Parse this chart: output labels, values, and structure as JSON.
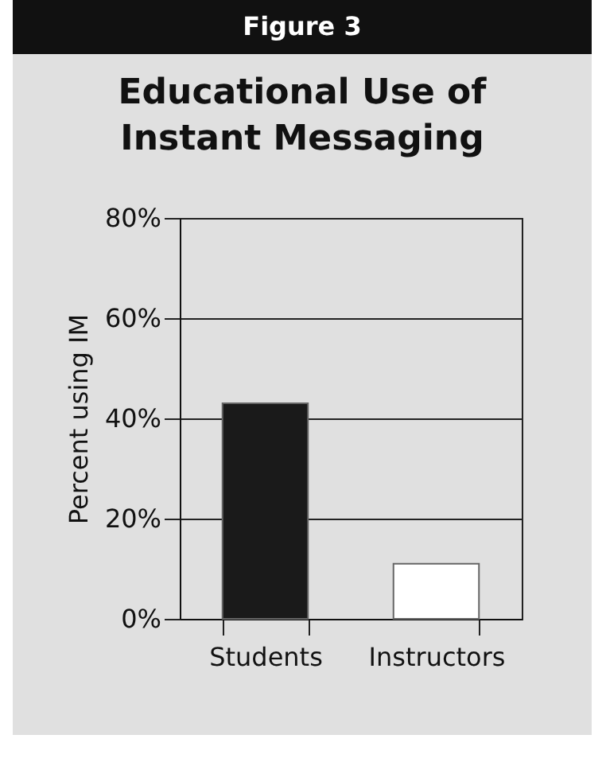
{
  "chart_data": {
    "type": "bar",
    "title": "Educational Use of Instant Messaging",
    "subtitle": "Figure 3",
    "ylabel": "Percent using IM",
    "categories": [
      "Students",
      "Instructors"
    ],
    "values": [
      43,
      11
    ],
    "colors": [
      "#1a1a1a",
      "#ffffff"
    ],
    "ylim": [
      0,
      80
    ],
    "yticks": [
      {
        "value": 0,
        "label": "0%"
      },
      {
        "value": 20,
        "label": "20%"
      },
      {
        "value": 40,
        "label": "40%"
      },
      {
        "value": 60,
        "label": "60%"
      },
      {
        "value": 80,
        "label": "80%"
      }
    ],
    "grid": "y"
  }
}
